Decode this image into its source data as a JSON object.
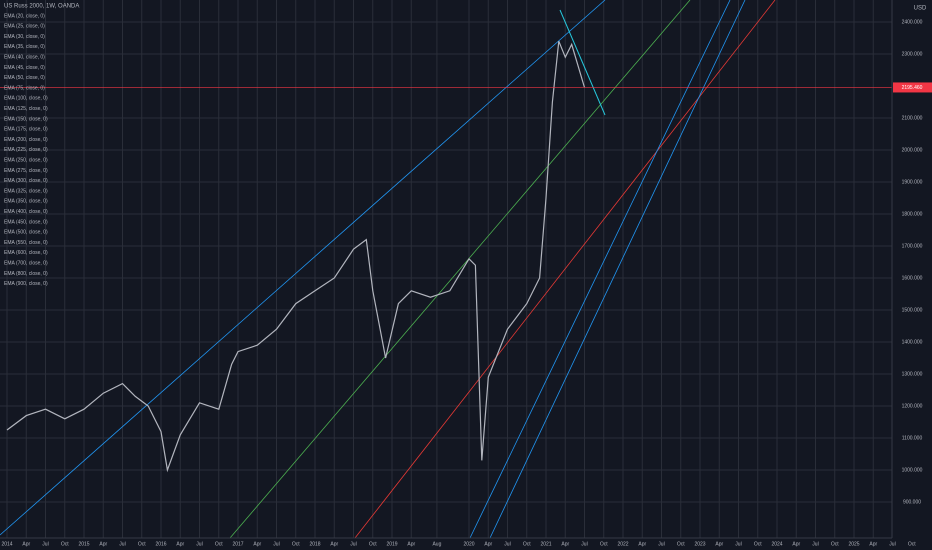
{
  "chart_data": {
    "type": "line",
    "title": "US Russ 2000, 1W, OANDA",
    "currency": "USD",
    "indicators": [
      "EMA (20, close, 0)",
      "EMA (25, close, 0)",
      "EMA (30, close, 0)",
      "EMA (35, close, 0)",
      "EMA (40, close, 0)",
      "EMA (45, close, 0)",
      "EMA (50, close, 0)",
      "EMA (75, close, 0)",
      "EMA (100, close, 0)",
      "EMA (125, close, 0)",
      "EMA (150, close, 0)",
      "EMA (175, close, 0)",
      "EMA (200, close, 0)",
      "EMA (225, close, 0)",
      "EMA (250, close, 0)",
      "EMA (275, close, 0)",
      "EMA (300, close, 0)",
      "EMA (325, close, 0)",
      "EMA (350, close, 0)",
      "EMA (400, close, 0)",
      "EMA (450, close, 0)",
      "EMA (500, close, 0)",
      "EMA (550, close, 0)",
      "EMA (600, close, 0)",
      "EMA (700, close, 0)",
      "EMA (800, close, 0)",
      "EMA (900, close, 0)"
    ],
    "x": [
      "2014-01",
      "2014-04",
      "2014-07",
      "2014-10",
      "2015-01",
      "2015-04",
      "2015-07",
      "2015-09",
      "2015-11",
      "2016-01",
      "2016-02",
      "2016-04",
      "2016-07",
      "2016-10",
      "2016-12",
      "2017-01",
      "2017-04",
      "2017-07",
      "2017-10",
      "2018-01",
      "2018-04",
      "2018-07",
      "2018-09",
      "2018-10",
      "2018-12",
      "2019-02",
      "2019-04",
      "2019-07",
      "2019-10",
      "2020-01",
      "2020-02",
      "2020-03",
      "2020-04",
      "2020-07",
      "2020-10",
      "2020-12",
      "2021-01",
      "2021-02",
      "2021-03",
      "2021-04",
      "2021-05",
      "2021-07"
    ],
    "values": [
      1125,
      1170,
      1190,
      1160,
      1190,
      1240,
      1270,
      1230,
      1200,
      1120,
      1000,
      1110,
      1210,
      1190,
      1330,
      1370,
      1390,
      1440,
      1520,
      1560,
      1600,
      1690,
      1720,
      1560,
      1350,
      1520,
      1560,
      1540,
      1560,
      1660,
      1640,
      1030,
      1290,
      1440,
      1520,
      1600,
      1850,
      2150,
      2340,
      2290,
      2330,
      2195.46
    ],
    "color": "#b2b5be",
    "last_price": 2195.46,
    "last_price_label": "2195.460",
    "last_price_color": "#f23645",
    "ylim": [
      787.5,
      2468.75
    ],
    "yticks": [
      {
        "value": 900,
        "label": "900.000"
      },
      {
        "value": 1000,
        "label": "1000.000"
      },
      {
        "value": 1100,
        "label": "1100.000"
      },
      {
        "value": 1200,
        "label": "1200.000"
      },
      {
        "value": 1300,
        "label": "1300.000"
      },
      {
        "value": 1400,
        "label": "1400.000"
      },
      {
        "value": 1500,
        "label": "1500.000"
      },
      {
        "value": 1600,
        "label": "1600.000"
      },
      {
        "value": 1700,
        "label": "1700.000"
      },
      {
        "value": 1800,
        "label": "1800.000"
      },
      {
        "value": 1900,
        "label": "1900.000"
      },
      {
        "value": 2000,
        "label": "2000.000"
      },
      {
        "value": 2100,
        "label": "2100.000"
      },
      {
        "value": 2300,
        "label": "2300.000"
      },
      {
        "value": 2400,
        "label": "2400.000"
      }
    ],
    "xticks": [
      {
        "value": "2014-01",
        "label": "2014"
      },
      {
        "value": "2014-04",
        "label": "Apr"
      },
      {
        "value": "2014-07",
        "label": "Jul"
      },
      {
        "value": "2014-10",
        "label": "Oct"
      },
      {
        "value": "2015-01",
        "label": "2015"
      },
      {
        "value": "2015-04",
        "label": "Apr"
      },
      {
        "value": "2015-07",
        "label": "Jul"
      },
      {
        "value": "2015-10",
        "label": "Oct"
      },
      {
        "value": "2016-01",
        "label": "2016"
      },
      {
        "value": "2016-04",
        "label": "Apr"
      },
      {
        "value": "2016-07",
        "label": "Jul"
      },
      {
        "value": "2016-10",
        "label": "Oct"
      },
      {
        "value": "2017-01",
        "label": "2017"
      },
      {
        "value": "2017-04",
        "label": "Apr"
      },
      {
        "value": "2017-07",
        "label": "Jul"
      },
      {
        "value": "2017-10",
        "label": "Oct"
      },
      {
        "value": "2018-01",
        "label": "2018"
      },
      {
        "value": "2018-04",
        "label": "Apr"
      },
      {
        "value": "2018-07",
        "label": "Jul"
      },
      {
        "value": "2018-10",
        "label": "Oct"
      },
      {
        "value": "2019-01",
        "label": "2019"
      },
      {
        "value": "2019-04",
        "label": "Apr"
      },
      {
        "value": "2019-08",
        "label": "Aug"
      },
      {
        "value": "2020-01",
        "label": "2020"
      },
      {
        "value": "2020-04",
        "label": "Apr"
      },
      {
        "value": "2020-07",
        "label": "Jul"
      },
      {
        "value": "2020-10",
        "label": "Oct"
      },
      {
        "value": "2021-01",
        "label": "2021"
      },
      {
        "value": "2021-04",
        "label": "Apr"
      },
      {
        "value": "2021-07",
        "label": "Jul"
      },
      {
        "value": "2021-10",
        "label": "Oct"
      },
      {
        "value": "2022-01",
        "label": "2022"
      },
      {
        "value": "2022-04",
        "label": "Apr"
      },
      {
        "value": "2022-07",
        "label": "Jul"
      },
      {
        "value": "2022-10",
        "label": "Oct"
      },
      {
        "value": "2023-01",
        "label": "2023"
      },
      {
        "value": "2023-04",
        "label": "Apr"
      },
      {
        "value": "2023-07",
        "label": "Jul"
      },
      {
        "value": "2023-10",
        "label": "Oct"
      },
      {
        "value": "2024-01",
        "label": "2024"
      },
      {
        "value": "2024-04",
        "label": "Apr"
      },
      {
        "value": "2024-07",
        "label": "Jul"
      },
      {
        "value": "2024-10",
        "label": "Oct"
      },
      {
        "value": "2025-01",
        "label": "2025"
      },
      {
        "value": "2025-04",
        "label": "Apr"
      },
      {
        "value": "2025-07",
        "label": "Jul"
      },
      {
        "value": "2025-10",
        "label": "Oct"
      }
    ],
    "grid": true
  }
}
